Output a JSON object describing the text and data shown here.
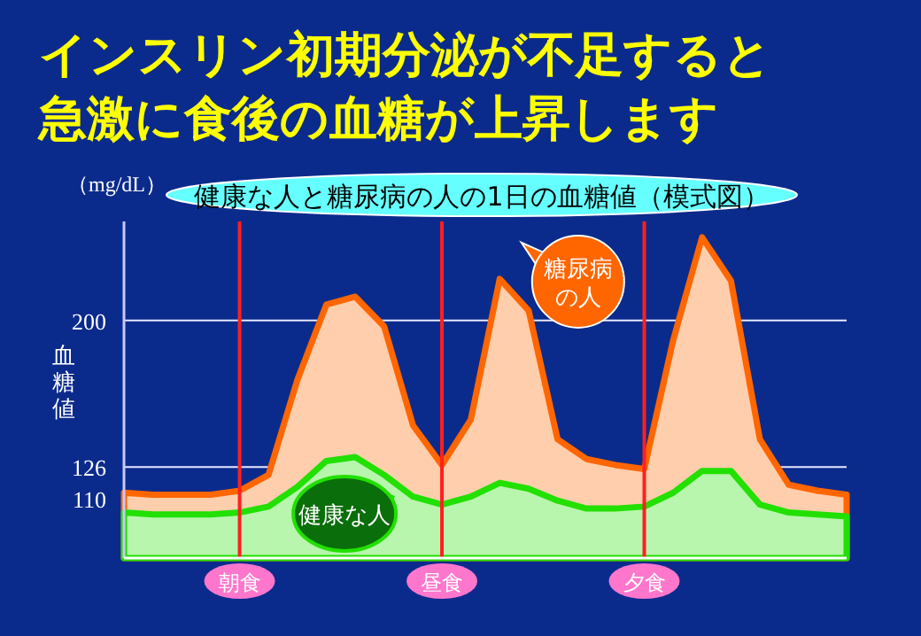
{
  "chart_data": {
    "type": "area",
    "title": "インスリン初期分泌が不足すると急激に食後の血糖が上昇します",
    "subtitle": "健康な人と糖尿病の人の1日の血糖値（模式図）",
    "ylabel": "血糖値",
    "annotations": [
      "（mg/dL）"
    ],
    "categories": [
      null,
      null,
      null,
      null,
      "朝食",
      null,
      null,
      null,
      null,
      null,
      null,
      "昼食",
      null,
      null,
      null,
      null,
      null,
      null,
      "夕食",
      null,
      null,
      null,
      null,
      null,
      null,
      null
    ],
    "ylim": [
      80,
      250
    ],
    "yticks": [
      110,
      126,
      200
    ],
    "grid": true,
    "marker": "none",
    "line_style": "solid",
    "series": [
      {
        "name": "糖尿病の人",
        "color": "#ff6600",
        "values": [
          113,
          112,
          112,
          112,
          114,
          122,
          170,
          208,
          212,
          197,
          147,
          127,
          150,
          221,
          205,
          140,
          130,
          127,
          125,
          190,
          242,
          220,
          140,
          117,
          114,
          112
        ]
      },
      {
        "name": "健康な人",
        "color": "#22e000",
        "values": [
          103,
          102,
          102,
          102,
          103,
          106,
          116,
          129,
          131,
          122,
          111,
          107,
          111,
          118,
          115,
          109,
          105,
          105,
          106,
          113,
          124,
          124,
          107,
          103,
          102,
          101
        ]
      }
    ]
  }
}
